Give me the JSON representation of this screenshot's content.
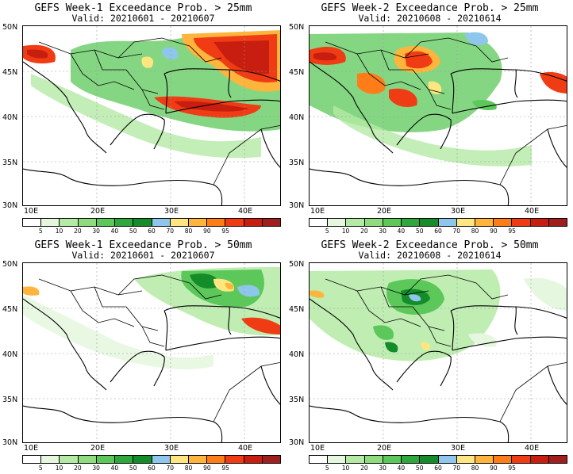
{
  "colorbar": {
    "colors": [
      "#ffffff",
      "#e6f7e0",
      "#b4eaa5",
      "#8fdc7e",
      "#5cc85a",
      "#2ea83c",
      "#148c2a",
      "#8ec6ec",
      "#ffe680",
      "#ffb43c",
      "#ff7d18",
      "#f03c14",
      "#c81e10",
      "#a01e1e"
    ],
    "labels": [
      "5",
      "10",
      "20",
      "30",
      "40",
      "50",
      "60",
      "70",
      "80",
      "90",
      "95"
    ]
  },
  "axes": {
    "lat_labels": [
      "50N",
      "45N",
      "40N",
      "35N",
      "30N"
    ],
    "lon_labels": [
      "10E",
      "20E",
      "30E",
      "40E"
    ]
  },
  "panels": [
    {
      "id": "w1-25",
      "title": "GEFS Week-1 Exceedance Prob. > 25mm",
      "subtitle": "Valid: 20210601 - 20210607"
    },
    {
      "id": "w2-25",
      "title": "GEFS Week-2 Exceedance Prob. > 25mm",
      "subtitle": "Valid: 20210608 - 20210614"
    },
    {
      "id": "w1-50",
      "title": "GEFS Week-1 Exceedance Prob. > 50mm",
      "subtitle": "Valid: 20210601 - 20210607"
    },
    {
      "id": "w2-50",
      "title": "GEFS Week-2 Exceedance Prob. > 50mm",
      "subtitle": "Valid: 20210608 - 20210614"
    }
  ]
}
